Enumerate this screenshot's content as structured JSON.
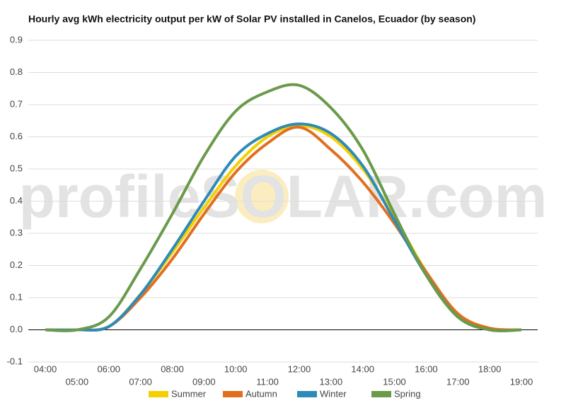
{
  "chart_data": {
    "type": "line",
    "title": "Hourly avg kWh electricity output per kW of Solar PV installed in Canelos, Ecuador (by season)",
    "watermark": "profileSOLAR.com",
    "categories": [
      "04:00",
      "05:00",
      "06:00",
      "07:00",
      "08:00",
      "09:00",
      "10:00",
      "11:00",
      "12:00",
      "13:00",
      "14:00",
      "15:00",
      "16:00",
      "17:00",
      "18:00",
      "19:00"
    ],
    "series": [
      {
        "name": "Summer",
        "color": "#f5d000",
        "values": [
          0,
          0,
          0.01,
          0.11,
          0.24,
          0.38,
          0.51,
          0.6,
          0.635,
          0.6,
          0.5,
          0.35,
          0.18,
          0.05,
          0.005,
          0
        ]
      },
      {
        "name": "Autumn",
        "color": "#e07020",
        "values": [
          0,
          0,
          0.01,
          0.1,
          0.22,
          0.36,
          0.49,
          0.58,
          0.63,
          0.56,
          0.46,
          0.33,
          0.18,
          0.05,
          0.005,
          0
        ]
      },
      {
        "name": "Winter",
        "color": "#2e8bb8",
        "values": [
          0,
          0,
          0.01,
          0.11,
          0.25,
          0.4,
          0.54,
          0.61,
          0.64,
          0.61,
          0.51,
          0.34,
          0.17,
          0.04,
          0,
          0
        ]
      },
      {
        "name": "Spring",
        "color": "#6a9a4a",
        "values": [
          0,
          0,
          0.04,
          0.19,
          0.36,
          0.54,
          0.68,
          0.74,
          0.76,
          0.69,
          0.56,
          0.36,
          0.17,
          0.04,
          0,
          0
        ]
      }
    ],
    "ylim": [
      -0.1,
      0.9
    ],
    "yticks": [
      -0.1,
      {
        "value": 0,
        "label": "0.0"
      },
      0.1,
      0.2,
      0.3,
      0.4,
      0.5,
      0.6,
      0.7,
      0.8,
      0.9
    ],
    "grid": true,
    "legend": "bottom"
  }
}
